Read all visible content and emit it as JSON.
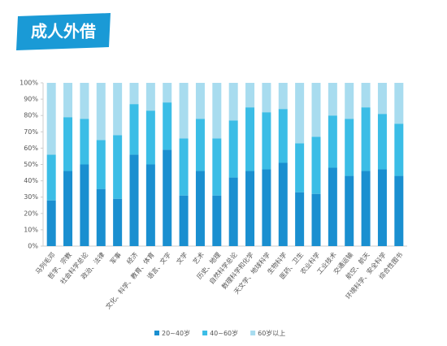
{
  "chart_data": {
    "type": "stacked_bar",
    "title": "成人外借",
    "categories": [
      "马列毛邓",
      "哲学、宗教",
      "社会科学总论",
      "政治、法律",
      "军事",
      "经济",
      "文化、科学、教育、体育",
      "语言、文字",
      "文学",
      "艺术",
      "历史、地理",
      "自然科学总论",
      "数理科学和化学",
      "天文学、地球科学",
      "生物科学",
      "医药、卫生",
      "农业科学",
      "工业技术",
      "交通运输",
      "航空、航天",
      "环境科学、安全科学",
      "综合性图书"
    ],
    "series": [
      {
        "name": "20~40岁",
        "color": "#1a8fd0",
        "values": [
          28,
          46,
          50,
          35,
          29,
          56,
          50,
          59,
          31,
          46,
          31,
          42,
          46,
          47,
          51,
          33,
          32,
          48,
          43,
          46,
          47,
          43
        ]
      },
      {
        "name": "40~60岁",
        "color": "#3bbde6",
        "values": [
          28,
          33,
          28,
          30,
          39,
          31,
          33,
          29,
          35,
          32,
          35,
          35,
          39,
          35,
          33,
          30,
          35,
          32,
          35,
          39,
          34,
          32
        ]
      },
      {
        "name": "60岁以上",
        "color": "#a8dcef",
        "values": [
          44,
          21,
          22,
          35,
          32,
          13,
          17,
          12,
          34,
          22,
          34,
          23,
          15,
          18,
          16,
          37,
          33,
          20,
          22,
          15,
          19,
          25
        ]
      }
    ],
    "ylim": [
      0,
      100
    ],
    "yticks": [
      {
        "value": 0,
        "label": "0%"
      },
      {
        "value": 10,
        "label": "10%"
      },
      {
        "value": 20,
        "label": "20%"
      },
      {
        "value": 30,
        "label": "30%"
      },
      {
        "value": 40,
        "label": "40%"
      },
      {
        "value": 50,
        "label": "50%"
      },
      {
        "value": 60,
        "label": "60%"
      },
      {
        "value": 70,
        "label": "70%"
      },
      {
        "value": 80,
        "label": "80%"
      },
      {
        "value": 90,
        "label": "90%"
      },
      {
        "value": 100,
        "label": "100%"
      }
    ],
    "legend": "bottom"
  }
}
